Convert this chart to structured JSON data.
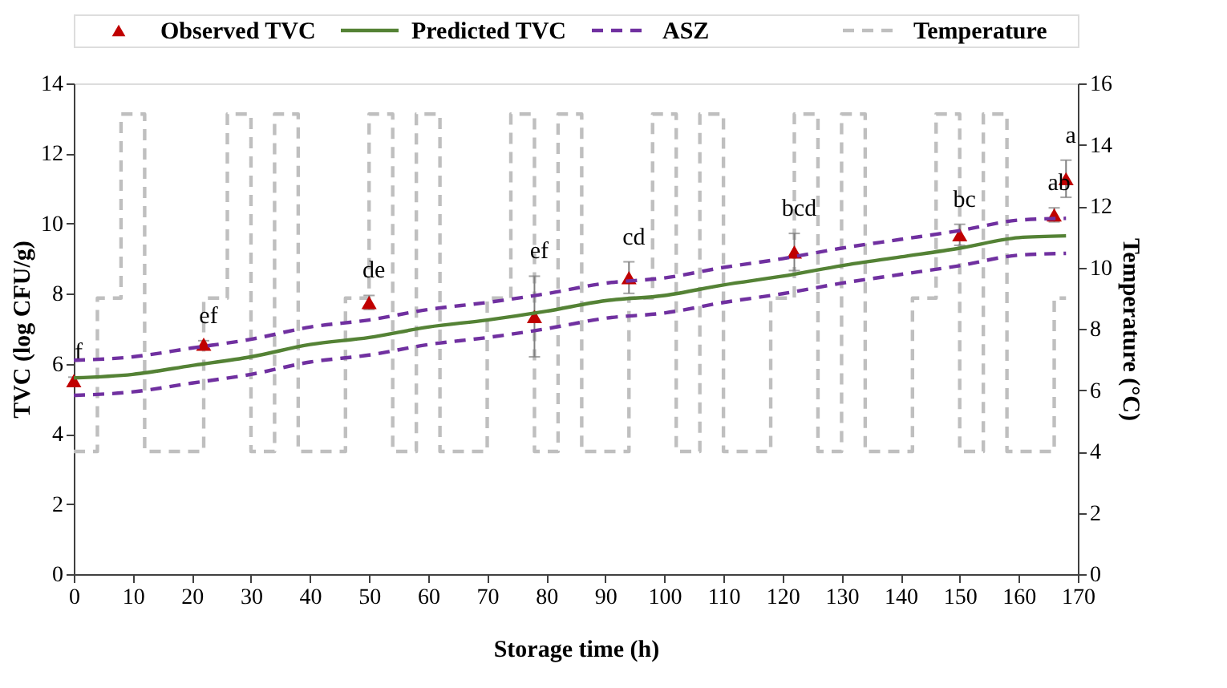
{
  "chart_data": {
    "type": "line",
    "xlabel": "Storage time (h)",
    "ylabel": "TVC (log CFU/g)",
    "y2label": "Temperature (°C)",
    "xlim": [
      0,
      170
    ],
    "xticks": [
      0,
      10,
      20,
      30,
      40,
      50,
      60,
      70,
      80,
      90,
      100,
      110,
      120,
      130,
      140,
      150,
      160,
      170
    ],
    "ylim": [
      0,
      14
    ],
    "yticks": [
      0,
      2,
      4,
      6,
      8,
      10,
      12,
      14
    ],
    "y2lim": [
      0,
      16
    ],
    "y2ticks": [
      0,
      2,
      4,
      6,
      8,
      10,
      12,
      14,
      16
    ],
    "grid": false,
    "legend": "top",
    "series": [
      {
        "name": "Observed TVC",
        "type": "scatter",
        "marker": "triangle",
        "color": "#c00000",
        "x": [
          0,
          22,
          50,
          78,
          94,
          122,
          150,
          166,
          168
        ],
        "values": [
          5.52,
          6.56,
          7.75,
          7.35,
          8.46,
          9.19,
          9.68,
          10.25,
          11.28
        ],
        "errors": [
          0.1,
          0.1,
          0.2,
          1.15,
          0.45,
          0.53,
          0.3,
          0.2,
          0.53
        ],
        "value_labels": [
          "f",
          "ef",
          "de",
          "ef",
          "cd",
          "bcd",
          "bc",
          "ab",
          "a"
        ]
      },
      {
        "name": "Predicted TVC",
        "type": "line",
        "color": "#548235",
        "line_style": "solid",
        "x": [
          0,
          10,
          20,
          30,
          40,
          50,
          60,
          70,
          80,
          90,
          100,
          110,
          120,
          130,
          140,
          150,
          160,
          168
        ],
        "values": [
          5.6,
          5.7,
          5.95,
          6.2,
          6.55,
          6.75,
          7.05,
          7.25,
          7.5,
          7.8,
          7.95,
          8.25,
          8.5,
          8.8,
          9.05,
          9.3,
          9.6,
          9.65
        ]
      },
      {
        "name": "ASZ",
        "type": "line",
        "color": "#7030a0",
        "line_style": "dashed",
        "x": [
          0,
          10,
          20,
          30,
          40,
          50,
          60,
          70,
          80,
          90,
          100,
          110,
          120,
          130,
          140,
          150,
          160,
          168
        ],
        "values": [
          6.1,
          6.2,
          6.45,
          6.7,
          7.05,
          7.25,
          7.55,
          7.75,
          8.0,
          8.3,
          8.45,
          8.75,
          9.0,
          9.3,
          9.55,
          9.8,
          10.1,
          10.15
        ]
      },
      {
        "type": "line",
        "color": "#7030a0",
        "line_style": "dashed",
        "x": [
          0,
          10,
          20,
          30,
          40,
          50,
          60,
          70,
          80,
          90,
          100,
          110,
          120,
          130,
          140,
          150,
          160,
          168
        ],
        "values": [
          5.1,
          5.2,
          5.45,
          5.7,
          6.05,
          6.25,
          6.55,
          6.75,
          7.0,
          7.3,
          7.45,
          7.75,
          8.0,
          8.3,
          8.55,
          8.8,
          9.1,
          9.15
        ]
      },
      {
        "name": "Temperature",
        "type": "step",
        "axis": "y2",
        "color": "#bfbfbf",
        "line_style": "dashed",
        "x": [
          0,
          4,
          8,
          12,
          22,
          26,
          30,
          34,
          38,
          46,
          50,
          54,
          58,
          62,
          70,
          74,
          78,
          82,
          86,
          94,
          98,
          102,
          106,
          110,
          118,
          122,
          126,
          130,
          134,
          142,
          146,
          150,
          154,
          158,
          166,
          168
        ],
        "values": [
          4,
          9,
          15,
          4,
          9,
          15,
          4,
          15,
          4,
          9,
          15,
          4,
          15,
          4,
          9,
          15,
          4,
          15,
          4,
          9,
          15,
          4,
          15,
          4,
          9,
          15,
          4,
          15,
          4,
          9,
          15,
          4,
          15,
          4,
          9,
          9
        ]
      }
    ]
  }
}
